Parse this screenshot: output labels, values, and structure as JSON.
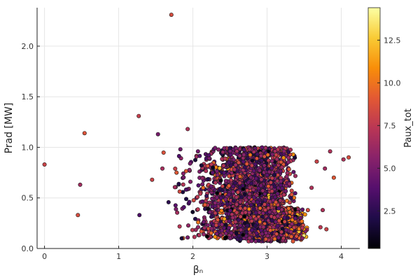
{
  "chart_data": {
    "type": "scatter",
    "xlabel": "βₙ",
    "ylabel": "Prad [MW]",
    "colorbar_label": "Paux_tot",
    "xlim": [
      -0.1,
      4.25
    ],
    "ylim": [
      0.0,
      2.38
    ],
    "xticks": [
      0,
      1,
      2,
      3,
      4
    ],
    "yticks": [
      0.0,
      0.5,
      1.0,
      1.5,
      2.0
    ],
    "ytick_labels": [
      "0.0",
      "0.5",
      "1.0",
      "1.5",
      "2.0"
    ],
    "color_range": [
      0.3,
      14.4
    ],
    "colorbar_ticks": [
      2.5,
      5.0,
      7.5,
      10.0,
      12.5
    ],
    "colorbar_tick_labels": [
      "2.5",
      "5.0",
      "7.5",
      "10.0",
      "12.5"
    ],
    "colormap": [
      "#000004",
      "#1f0c48",
      "#550f6d",
      "#88226a",
      "#ba3655",
      "#e35933",
      "#f98e09",
      "#f9cb35",
      "#fcffa4"
    ],
    "grid": true,
    "legend": "none",
    "points": [
      {
        "x": 0.0,
        "y": 0.83,
        "c": 8.0
      },
      {
        "x": 0.45,
        "y": 0.33,
        "c": 8.5
      },
      {
        "x": 0.48,
        "y": 0.63,
        "c": 6.5
      },
      {
        "x": 0.54,
        "y": 1.14,
        "c": 8.8
      },
      {
        "x": 1.27,
        "y": 1.31,
        "c": 7.8
      },
      {
        "x": 1.28,
        "y": 0.33,
        "c": 3.5
      },
      {
        "x": 1.53,
        "y": 1.13,
        "c": 5.0
      },
      {
        "x": 1.71,
        "y": 2.31,
        "c": 8.5
      },
      {
        "x": 1.93,
        "y": 1.18,
        "c": 7.0
      },
      {
        "x": 1.45,
        "y": 0.68,
        "c": 8.0
      },
      {
        "x": 1.78,
        "y": 0.75,
        "c": 9.0
      },
      {
        "x": 3.55,
        "y": 0.38,
        "c": 8.5
      },
      {
        "x": 3.6,
        "y": 0.6,
        "c": 7.0
      },
      {
        "x": 3.67,
        "y": 0.86,
        "c": 8.0
      },
      {
        "x": 3.72,
        "y": 0.21,
        "c": 7.5
      },
      {
        "x": 3.75,
        "y": 0.38,
        "c": 7.0
      },
      {
        "x": 3.8,
        "y": 0.19,
        "c": 8.0
      },
      {
        "x": 3.85,
        "y": 0.96,
        "c": 7.0
      },
      {
        "x": 3.9,
        "y": 0.7,
        "c": 9.0
      },
      {
        "x": 4.03,
        "y": 0.88,
        "c": 7.0
      },
      {
        "x": 4.1,
        "y": 0.9,
        "c": 8.5
      },
      {
        "x": 3.78,
        "y": 0.79,
        "c": 6.5
      }
    ],
    "clusters": [
      {
        "x_range": [
          1.35,
          3.4
        ],
        "y_range": [
          0.38,
          1.0
        ],
        "count": 1500,
        "color_mean": 5.2,
        "color_spread": 2.2,
        "high_color_x": 3.0
      },
      {
        "x_range": [
          1.45,
          3.55
        ],
        "y_range": [
          0.1,
          0.4
        ],
        "count": 1100,
        "color_mean": 5.6,
        "color_spread": 2.4,
        "high_color_x": 3.0
      },
      {
        "x_range": [
          1.75,
          3.55
        ],
        "y_range": [
          0.07,
          0.32
        ],
        "count": 500,
        "color_mean": 5.5,
        "color_spread": 2.5,
        "high_color_x": 3.0
      }
    ]
  }
}
